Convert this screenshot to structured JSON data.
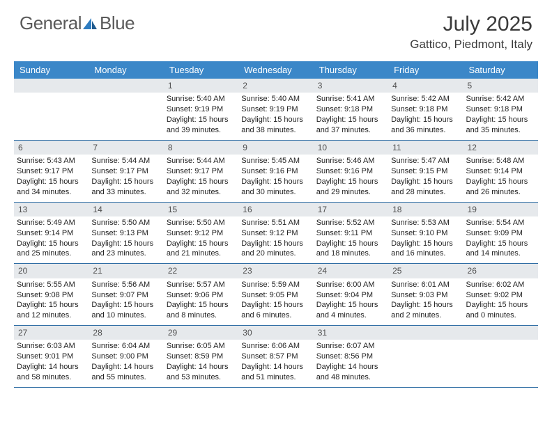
{
  "logo": {
    "text1": "General",
    "text2": "Blue"
  },
  "title": "July 2025",
  "location": "Gattico, Piedmont, Italy",
  "colors": {
    "header_bg": "#3b87c8",
    "header_text": "#ffffff",
    "daynum_bg": "#e6e9ec",
    "daynum_text": "#505050",
    "body_text": "#222222",
    "border": "#2e6da4",
    "logo_gray": "#5a5a5a",
    "logo_blue": "#2e7cc0"
  },
  "weekdays": [
    "Sunday",
    "Monday",
    "Tuesday",
    "Wednesday",
    "Thursday",
    "Friday",
    "Saturday"
  ],
  "weeks": [
    [
      {
        "n": "",
        "sunrise": "",
        "sunset": "",
        "daylight": ""
      },
      {
        "n": "",
        "sunrise": "",
        "sunset": "",
        "daylight": ""
      },
      {
        "n": "1",
        "sunrise": "Sunrise: 5:40 AM",
        "sunset": "Sunset: 9:19 PM",
        "daylight": "Daylight: 15 hours and 39 minutes."
      },
      {
        "n": "2",
        "sunrise": "Sunrise: 5:40 AM",
        "sunset": "Sunset: 9:19 PM",
        "daylight": "Daylight: 15 hours and 38 minutes."
      },
      {
        "n": "3",
        "sunrise": "Sunrise: 5:41 AM",
        "sunset": "Sunset: 9:18 PM",
        "daylight": "Daylight: 15 hours and 37 minutes."
      },
      {
        "n": "4",
        "sunrise": "Sunrise: 5:42 AM",
        "sunset": "Sunset: 9:18 PM",
        "daylight": "Daylight: 15 hours and 36 minutes."
      },
      {
        "n": "5",
        "sunrise": "Sunrise: 5:42 AM",
        "sunset": "Sunset: 9:18 PM",
        "daylight": "Daylight: 15 hours and 35 minutes."
      }
    ],
    [
      {
        "n": "6",
        "sunrise": "Sunrise: 5:43 AM",
        "sunset": "Sunset: 9:17 PM",
        "daylight": "Daylight: 15 hours and 34 minutes."
      },
      {
        "n": "7",
        "sunrise": "Sunrise: 5:44 AM",
        "sunset": "Sunset: 9:17 PM",
        "daylight": "Daylight: 15 hours and 33 minutes."
      },
      {
        "n": "8",
        "sunrise": "Sunrise: 5:44 AM",
        "sunset": "Sunset: 9:17 PM",
        "daylight": "Daylight: 15 hours and 32 minutes."
      },
      {
        "n": "9",
        "sunrise": "Sunrise: 5:45 AM",
        "sunset": "Sunset: 9:16 PM",
        "daylight": "Daylight: 15 hours and 30 minutes."
      },
      {
        "n": "10",
        "sunrise": "Sunrise: 5:46 AM",
        "sunset": "Sunset: 9:16 PM",
        "daylight": "Daylight: 15 hours and 29 minutes."
      },
      {
        "n": "11",
        "sunrise": "Sunrise: 5:47 AM",
        "sunset": "Sunset: 9:15 PM",
        "daylight": "Daylight: 15 hours and 28 minutes."
      },
      {
        "n": "12",
        "sunrise": "Sunrise: 5:48 AM",
        "sunset": "Sunset: 9:14 PM",
        "daylight": "Daylight: 15 hours and 26 minutes."
      }
    ],
    [
      {
        "n": "13",
        "sunrise": "Sunrise: 5:49 AM",
        "sunset": "Sunset: 9:14 PM",
        "daylight": "Daylight: 15 hours and 25 minutes."
      },
      {
        "n": "14",
        "sunrise": "Sunrise: 5:50 AM",
        "sunset": "Sunset: 9:13 PM",
        "daylight": "Daylight: 15 hours and 23 minutes."
      },
      {
        "n": "15",
        "sunrise": "Sunrise: 5:50 AM",
        "sunset": "Sunset: 9:12 PM",
        "daylight": "Daylight: 15 hours and 21 minutes."
      },
      {
        "n": "16",
        "sunrise": "Sunrise: 5:51 AM",
        "sunset": "Sunset: 9:12 PM",
        "daylight": "Daylight: 15 hours and 20 minutes."
      },
      {
        "n": "17",
        "sunrise": "Sunrise: 5:52 AM",
        "sunset": "Sunset: 9:11 PM",
        "daylight": "Daylight: 15 hours and 18 minutes."
      },
      {
        "n": "18",
        "sunrise": "Sunrise: 5:53 AM",
        "sunset": "Sunset: 9:10 PM",
        "daylight": "Daylight: 15 hours and 16 minutes."
      },
      {
        "n": "19",
        "sunrise": "Sunrise: 5:54 AM",
        "sunset": "Sunset: 9:09 PM",
        "daylight": "Daylight: 15 hours and 14 minutes."
      }
    ],
    [
      {
        "n": "20",
        "sunrise": "Sunrise: 5:55 AM",
        "sunset": "Sunset: 9:08 PM",
        "daylight": "Daylight: 15 hours and 12 minutes."
      },
      {
        "n": "21",
        "sunrise": "Sunrise: 5:56 AM",
        "sunset": "Sunset: 9:07 PM",
        "daylight": "Daylight: 15 hours and 10 minutes."
      },
      {
        "n": "22",
        "sunrise": "Sunrise: 5:57 AM",
        "sunset": "Sunset: 9:06 PM",
        "daylight": "Daylight: 15 hours and 8 minutes."
      },
      {
        "n": "23",
        "sunrise": "Sunrise: 5:59 AM",
        "sunset": "Sunset: 9:05 PM",
        "daylight": "Daylight: 15 hours and 6 minutes."
      },
      {
        "n": "24",
        "sunrise": "Sunrise: 6:00 AM",
        "sunset": "Sunset: 9:04 PM",
        "daylight": "Daylight: 15 hours and 4 minutes."
      },
      {
        "n": "25",
        "sunrise": "Sunrise: 6:01 AM",
        "sunset": "Sunset: 9:03 PM",
        "daylight": "Daylight: 15 hours and 2 minutes."
      },
      {
        "n": "26",
        "sunrise": "Sunrise: 6:02 AM",
        "sunset": "Sunset: 9:02 PM",
        "daylight": "Daylight: 15 hours and 0 minutes."
      }
    ],
    [
      {
        "n": "27",
        "sunrise": "Sunrise: 6:03 AM",
        "sunset": "Sunset: 9:01 PM",
        "daylight": "Daylight: 14 hours and 58 minutes."
      },
      {
        "n": "28",
        "sunrise": "Sunrise: 6:04 AM",
        "sunset": "Sunset: 9:00 PM",
        "daylight": "Daylight: 14 hours and 55 minutes."
      },
      {
        "n": "29",
        "sunrise": "Sunrise: 6:05 AM",
        "sunset": "Sunset: 8:59 PM",
        "daylight": "Daylight: 14 hours and 53 minutes."
      },
      {
        "n": "30",
        "sunrise": "Sunrise: 6:06 AM",
        "sunset": "Sunset: 8:57 PM",
        "daylight": "Daylight: 14 hours and 51 minutes."
      },
      {
        "n": "31",
        "sunrise": "Sunrise: 6:07 AM",
        "sunset": "Sunset: 8:56 PM",
        "daylight": "Daylight: 14 hours and 48 minutes."
      },
      {
        "n": "",
        "sunrise": "",
        "sunset": "",
        "daylight": ""
      },
      {
        "n": "",
        "sunrise": "",
        "sunset": "",
        "daylight": ""
      }
    ]
  ]
}
